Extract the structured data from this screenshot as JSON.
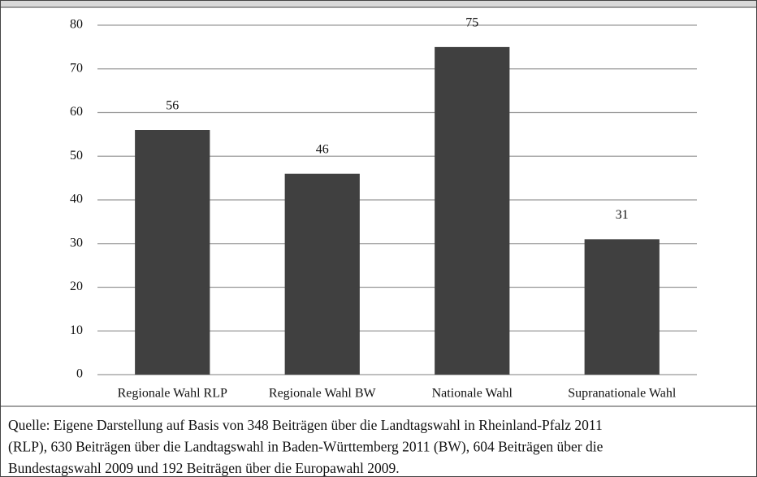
{
  "chart_data": {
    "type": "bar",
    "categories": [
      "Regionale Wahl RLP",
      "Regionale Wahl BW",
      "Nationale Wahl",
      "Supranationale Wahl"
    ],
    "values": [
      56,
      46,
      75,
      31
    ],
    "color": "#404040",
    "ylim": [
      0,
      80
    ],
    "yticks": [
      0,
      10,
      20,
      30,
      40,
      50,
      60,
      70,
      80
    ],
    "grid": true,
    "source": [
      "Quelle: Eigene Darstellung auf Basis von 348 Beiträgen über die Landtagswahl in Rheinland-Pfalz 2011",
      "(RLP), 630 Beiträgen über die Landtagswahl in Baden-Württemberg 2011 (BW), 604 Beiträgen über die",
      "Bundestagswahl 2009 und 192 Beiträgen über die Europawahl 2009."
    ]
  }
}
